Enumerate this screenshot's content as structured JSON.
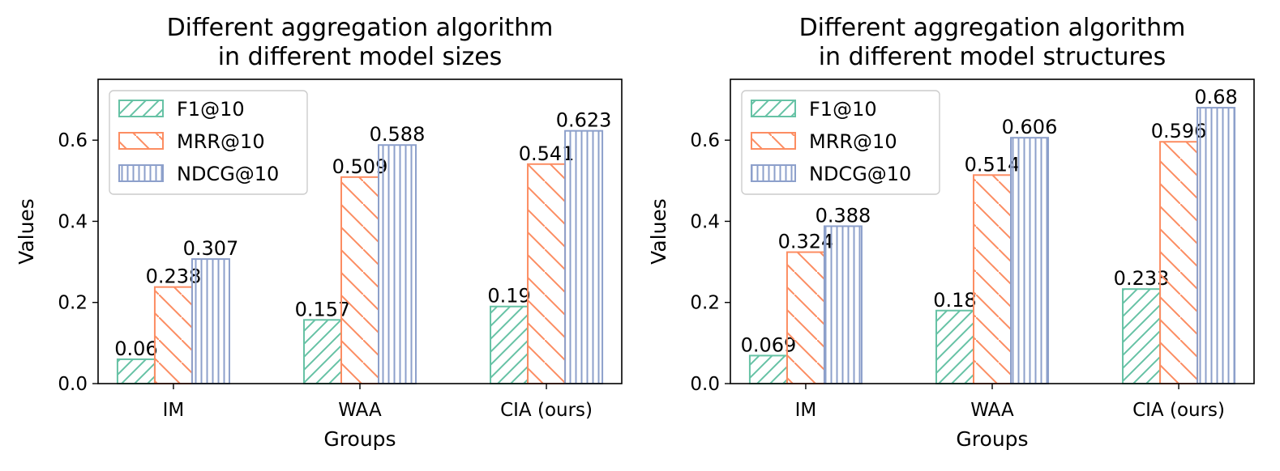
{
  "chart_data": [
    {
      "type": "bar",
      "title_lines": [
        "Different aggregation algorithm",
        "in different model sizes"
      ],
      "xlabel": "Groups",
      "ylabel": "Values",
      "ylim": [
        0,
        0.75
      ],
      "yticks": [
        "0.0",
        "0.2",
        "0.4",
        "0.6"
      ],
      "categories": [
        "IM",
        "WAA",
        "CIA (ours)"
      ],
      "legend_position": "top-left",
      "grid": false,
      "series": [
        {
          "name": "F1@10",
          "values": [
            0.06,
            0.157,
            0.19
          ],
          "labels": [
            "0.06",
            "0.157",
            "0.19"
          ],
          "color": "#66c2a5",
          "hatch": "diagonal-up"
        },
        {
          "name": "MRR@10",
          "values": [
            0.238,
            0.509,
            0.541
          ],
          "labels": [
            "0.238",
            "0.509",
            "0.541"
          ],
          "color": "#fc8d62",
          "hatch": "diagonal-down"
        },
        {
          "name": "NDCG@10",
          "values": [
            0.307,
            0.588,
            0.623
          ],
          "labels": [
            "0.307",
            "0.588",
            "0.623"
          ],
          "color": "#8da0cb",
          "hatch": "vertical"
        }
      ]
    },
    {
      "type": "bar",
      "title_lines": [
        "Different aggregation algorithm",
        "in different model structures"
      ],
      "xlabel": "Groups",
      "ylabel": "Values",
      "ylim": [
        0,
        0.75
      ],
      "yticks": [
        "0.0",
        "0.2",
        "0.4",
        "0.6"
      ],
      "categories": [
        "IM",
        "WAA",
        "CIA (ours)"
      ],
      "legend_position": "top-left",
      "grid": false,
      "series": [
        {
          "name": "F1@10",
          "values": [
            0.069,
            0.18,
            0.233
          ],
          "labels": [
            "0.069",
            "0.18",
            "0.233"
          ],
          "color": "#66c2a5",
          "hatch": "diagonal-up"
        },
        {
          "name": "MRR@10",
          "values": [
            0.324,
            0.514,
            0.596
          ],
          "labels": [
            "0.324",
            "0.514",
            "0.596"
          ],
          "color": "#fc8d62",
          "hatch": "diagonal-down"
        },
        {
          "name": "NDCG@10",
          "values": [
            0.388,
            0.606,
            0.68
          ],
          "labels": [
            "0.388",
            "0.606",
            "0.68"
          ],
          "color": "#8da0cb",
          "hatch": "vertical"
        }
      ]
    }
  ]
}
